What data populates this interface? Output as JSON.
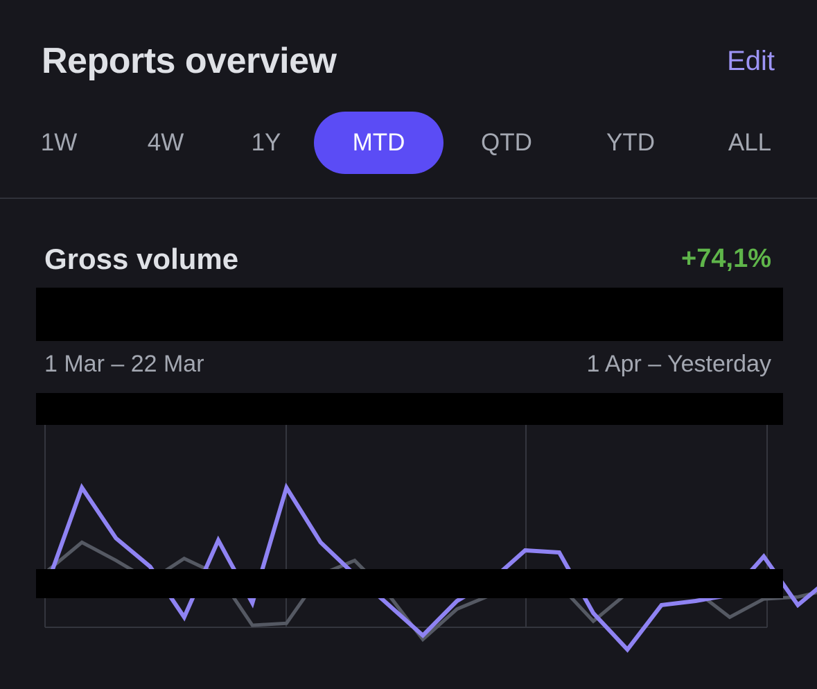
{
  "header": {
    "title": "Reports overview",
    "edit_label": "Edit"
  },
  "periods": {
    "items": [
      "1W",
      "4W",
      "1Y",
      "MTD",
      "QTD",
      "YTD",
      "ALL"
    ],
    "selected": "MTD"
  },
  "metric": {
    "title": "Gross volume",
    "change": "+74,1%"
  },
  "ranges": {
    "previous": "1 Mar – 22 Mar",
    "current": "1 Apr – Yesterday"
  },
  "colors": {
    "accent": "#5b4cf5",
    "current_series": "#8f83f3",
    "previous_series": "#555963",
    "positive": "#5fb54a"
  },
  "chart_data": {
    "type": "line",
    "series": [
      {
        "values": [
          0.72,
          0.58,
          0.67,
          0.77,
          0.66,
          0.74,
          0.99,
          0.98,
          0.74,
          0.67,
          0.84,
          1.06,
          0.91,
          0.84,
          0.82,
          0.79,
          0.97,
          0.83,
          0.84,
          0.82,
          0.95,
          0.86,
          0.85,
          0.81,
          0.82,
          0.86,
          0.89,
          0.54,
          0.87,
          0.93
        ]
      },
      {
        "values": [
          0.78,
          0.31,
          0.56,
          0.7,
          0.95,
          0.57,
          0.88,
          0.31,
          0.58,
          0.74,
          0.89,
          1.04,
          0.87,
          0.77,
          0.62,
          0.63,
          0.93,
          1.11,
          0.89,
          0.87,
          0.84,
          0.65,
          0.89,
          0.75,
          0.13,
          0.09
        ]
      }
    ]
  }
}
